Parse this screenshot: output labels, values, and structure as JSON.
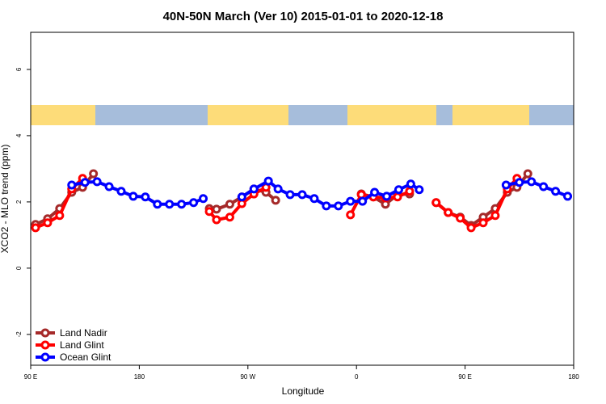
{
  "chart_data": {
    "type": "line",
    "title": "40N-50N March (Ver 10)   2015-01-01 to 2020-12-18",
    "x_label": "Longitude",
    "y_label": "XCO2 - MLO trend (ppm)",
    "xlim": [
      90,
      540
    ],
    "xticks": [
      {
        "value": 90,
        "label": "90 E"
      },
      180,
      {
        "value": 270,
        "label": "90 W"
      },
      {
        "value": 360,
        "label": "0"
      },
      {
        "value": 450,
        "label": "90 E"
      },
      {
        "value": 540,
        "label": "180"
      }
    ],
    "ylim": [
      -2.93,
      7.12
    ],
    "yticks": [
      -2,
      0,
      2,
      4,
      6
    ],
    "legend": "bottom-left",
    "series": [
      {
        "name": "Land Nadir",
        "color": "#a52a2a",
        "x": [
          94,
          104,
          114,
          124,
          133,
          142,
          null,
          238,
          244,
          255,
          265,
          275,
          285,
          293,
          null,
          364,
          374,
          384,
          394,
          404,
          null,
          426,
          436,
          446,
          455,
          465,
          475,
          485,
          493,
          502
        ],
        "values": [
          1.32,
          1.49,
          1.8,
          2.29,
          2.44,
          2.85,
          null,
          1.8,
          1.78,
          1.93,
          2.15,
          2.39,
          2.29,
          2.05,
          null,
          2.24,
          2.15,
          1.93,
          2.22,
          2.24,
          null,
          1.98,
          1.68,
          1.54,
          1.29,
          1.54,
          1.8,
          2.29,
          2.44,
          2.85
        ]
      },
      {
        "name": "Land Glint",
        "color": "#ff0000",
        "x": [
          94,
          104,
          114,
          124,
          133,
          null,
          238,
          244,
          255,
          265,
          275,
          285,
          null,
          355,
          364,
          374,
          384,
          394,
          404,
          null,
          426,
          436,
          446,
          455,
          465,
          475,
          485,
          493
        ],
        "values": [
          1.22,
          1.37,
          1.59,
          2.39,
          2.71,
          null,
          1.71,
          1.46,
          1.54,
          1.95,
          2.24,
          2.44,
          null,
          1.61,
          2.22,
          2.15,
          2.12,
          2.15,
          2.32,
          null,
          1.98,
          1.68,
          1.51,
          1.22,
          1.37,
          1.59,
          2.39,
          2.71
        ]
      },
      {
        "name": "Ocean Glint",
        "color": "#0000ff",
        "x": [
          124,
          135,
          145,
          155,
          165,
          175,
          185,
          195,
          205,
          215,
          225,
          233,
          null,
          265,
          275,
          287,
          295,
          305,
          315,
          325,
          335,
          345,
          355,
          365,
          375,
          385,
          395,
          405,
          412,
          null,
          484,
          495,
          505,
          515,
          525,
          535
        ],
        "values": [
          2.51,
          2.59,
          2.61,
          2.46,
          2.32,
          2.17,
          2.15,
          1.93,
          1.93,
          1.93,
          1.98,
          2.1,
          null,
          2.15,
          2.39,
          2.63,
          2.39,
          2.22,
          2.22,
          2.1,
          1.88,
          1.88,
          2.02,
          2.02,
          2.29,
          2.17,
          2.37,
          2.54,
          2.37,
          null,
          2.51,
          2.59,
          2.61,
          2.46,
          2.32,
          2.17
        ]
      }
    ]
  }
}
